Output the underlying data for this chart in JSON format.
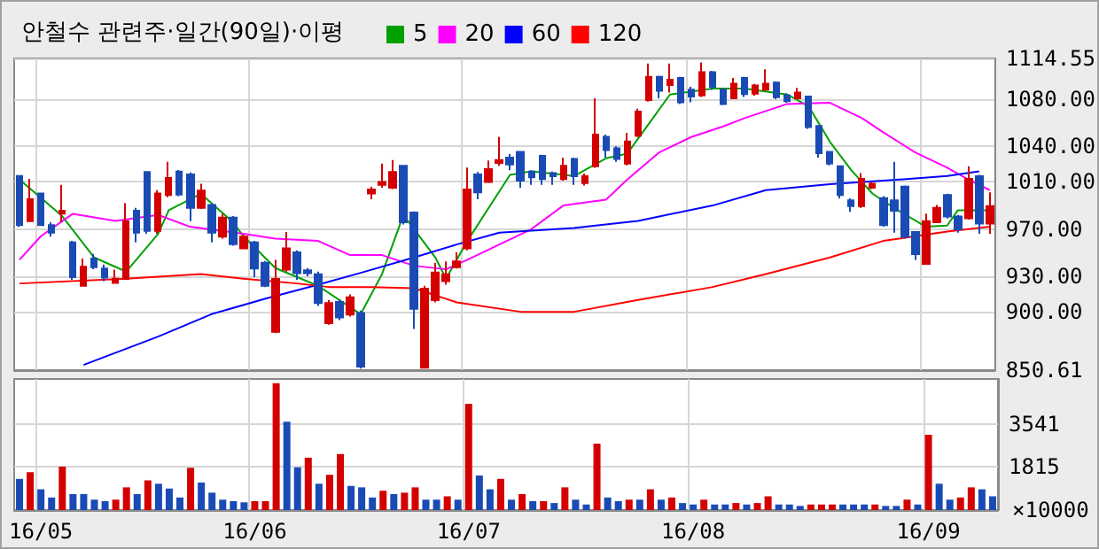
{
  "chart_data": [
    {
      "type": "candlestick",
      "title": "안철수 관련주·일간(90일)·이평",
      "categories": [
        null,
        null,
        null,
        null,
        null,
        null,
        null,
        null,
        null,
        null,
        null,
        null,
        null,
        null,
        null,
        null,
        null,
        null,
        null,
        null,
        null,
        null,
        null,
        null,
        null,
        null,
        null,
        null,
        null,
        null,
        null,
        null,
        null,
        null,
        null,
        null,
        null,
        null,
        null,
        null,
        null,
        null,
        null,
        null,
        null,
        null,
        null,
        null,
        null,
        null,
        null,
        null,
        null,
        null,
        null,
        null,
        null,
        null,
        null,
        null,
        null,
        null,
        null,
        null,
        null,
        null,
        null,
        null,
        null,
        null,
        null,
        null,
        null,
        null,
        null,
        null,
        null,
        null,
        null,
        null,
        null,
        null,
        null,
        null,
        null,
        null,
        null,
        null,
        null,
        null,
        null,
        null
      ],
      "ohlc": [
        [
          1015,
          1015,
          971.9,
          973.4
        ],
        [
          976.8,
          1012.5,
          976,
          995.3
        ],
        [
          1000.2,
          1000.2,
          973,
          973.4
        ],
        [
          973.4,
          975.8,
          963.6,
          967
        ],
        [
          983.1,
          1007.6,
          975.8,
          985.6
        ],
        [
          958.7,
          960,
          927,
          929.4
        ],
        [
          922,
          945,
          922,
          938.2
        ],
        [
          945,
          949,
          936,
          937.7
        ],
        [
          936.7,
          940,
          926,
          928.9
        ],
        [
          924.5,
          935.7,
          924,
          928
        ],
        [
          927.9,
          992,
          927,
          976.8
        ],
        [
          985.6,
          988,
          958.7,
          967
        ],
        [
          1018.3,
          1018.3,
          966,
          968.5
        ],
        [
          968.5,
          1003,
          966,
          1000.2
        ],
        [
          998.8,
          1027.1,
          997,
          1013.4
        ],
        [
          1018.8,
          1020,
          998,
          999.3
        ],
        [
          1016.4,
          1018,
          976.8,
          988
        ],
        [
          988,
          1008.5,
          987,
          1002.7
        ],
        [
          990.5,
          992,
          958.7,
          967
        ],
        [
          963.6,
          983,
          962,
          979.7
        ],
        [
          979.7,
          981,
          956,
          957.2
        ],
        [
          953.8,
          965,
          953,
          963.6
        ],
        [
          958.7,
          960,
          929.4,
          936.7
        ],
        [
          941.6,
          943,
          921,
          922
        ],
        [
          883,
          944,
          882,
          927.9
        ],
        [
          935.7,
          967.5,
          934,
          953.8
        ],
        [
          950.4,
          952,
          927,
          932.8
        ],
        [
          935.2,
          937,
          930,
          932.8
        ],
        [
          931.8,
          934,
          905,
          907.4
        ],
        [
          890.3,
          910,
          889,
          907.4
        ],
        [
          908.4,
          910,
          893,
          895.2
        ],
        [
          897.6,
          914.7,
          896,
          912.3
        ],
        [
          899,
          901,
          852,
          853.6
        ],
        [
          1000.2,
          1006,
          995.3,
          1003.6
        ],
        [
          1007.6,
          1025.6,
          1005,
          1010
        ],
        [
          1005.1,
          1028.6,
          1004,
          1018.3
        ],
        [
          1023.7,
          1024,
          974,
          975.8
        ],
        [
          984,
          985,
          885.4,
          902.5
        ],
        [
          852.6,
          922,
          852,
          919.6
        ],
        [
          909.8,
          941.6,
          908,
          933.3
        ],
        [
          925.9,
          942.6,
          923,
          931.8
        ],
        [
          937.7,
          950.4,
          936.7,
          942.6
        ],
        [
          953.8,
          1022.2,
          952,
          1003.6
        ],
        [
          1016.4,
          1018.3,
          995.3,
          1001.2
        ],
        [
          1010,
          1028.1,
          1009,
          1020.8
        ],
        [
          1026.1,
          1048.1,
          1023.7,
          1028.6
        ],
        [
          1030.5,
          1033.5,
          1019.8,
          1024.7
        ],
        [
          1035.4,
          1036,
          1005.1,
          1011
        ],
        [
          1018.8,
          1019.8,
          1007.6,
          1013.9
        ],
        [
          1032,
          1033,
          1007.6,
          1012.4
        ],
        [
          1017.4,
          1018.8,
          1007.6,
          1014.9
        ],
        [
          1012.4,
          1030.5,
          1011,
          1023.7
        ],
        [
          1029.5,
          1030.5,
          1007.6,
          1014.9
        ],
        [
          1009,
          1017,
          1007,
          1014.9
        ],
        [
          1023.2,
          1080.9,
          1022,
          1050.1
        ],
        [
          1048.1,
          1050.1,
          1030.5,
          1036.9
        ],
        [
          1038.4,
          1040.4,
          1027,
          1029.5
        ],
        [
          1025.6,
          1051.5,
          1024,
          1044.2
        ],
        [
          1049.1,
          1072,
          1048,
          1069.6
        ],
        [
          1079.4,
          1110.2,
          1078,
          1099
        ],
        [
          1099,
          1100,
          1080.9,
          1087.2
        ],
        [
          1092.1,
          1110.2,
          1085.7,
          1096.6
        ],
        [
          1098,
          1099,
          1076,
          1077.4
        ],
        [
          1088.2,
          1090.6,
          1077.4,
          1082.3
        ],
        [
          1083.3,
          1111.2,
          1082,
          1102.9
        ],
        [
          1102.9,
          1104,
          1088,
          1090.6
        ],
        [
          1088.2,
          1089,
          1075,
          1076
        ],
        [
          1080.9,
          1098,
          1080,
          1093.1
        ],
        [
          1098,
          1099,
          1082,
          1084.3
        ],
        [
          1084.8,
          1093,
          1083,
          1091.6
        ],
        [
          1088.2,
          1105.3,
          1087,
          1093.1
        ],
        [
          1094.1,
          1095,
          1080,
          1081.8
        ],
        [
          1083.3,
          1085,
          1077,
          1078.4
        ],
        [
          1080.9,
          1089.7,
          1080,
          1085.7
        ],
        [
          1082.3,
          1083,
          1055,
          1056.4
        ],
        [
          1057.4,
          1058,
          1030.5,
          1034.4
        ],
        [
          1035.4,
          1036,
          1024,
          1025.6
        ],
        [
          1023.2,
          1024,
          996,
          998.8
        ],
        [
          994.4,
          996,
          984.6,
          989.5
        ],
        [
          989.5,
          1017.4,
          988,
          1012.5
        ],
        [
          1005.1,
          1010,
          1004,
          1008.5
        ],
        [
          996.3,
          998,
          972,
          973.4
        ],
        [
          994.4,
          1027.1,
          967,
          985.6
        ],
        [
          1006.1,
          1007,
          962,
          963.6
        ],
        [
          967.5,
          968,
          944,
          948.9
        ],
        [
          940.6,
          983.1,
          940,
          976.8
        ],
        [
          975.8,
          990.5,
          975,
          988
        ],
        [
          998.8,
          1000,
          979,
          980.7
        ],
        [
          980.7,
          982,
          967,
          969.9
        ],
        [
          979.2,
          1023.2,
          978,
          1012.5
        ],
        [
          1014.9,
          1016,
          966,
          974.8
        ],
        [
          974.8,
          1001.2,
          966,
          989.5
        ]
      ],
      "colors": [
        "#1a4bb5",
        "#d40000",
        "#1a4bb5",
        "#1a4bb5",
        "#d40000",
        "#1a4bb5",
        "#d40000",
        "#1a4bb5",
        "#1a4bb5",
        "#d40000",
        "#d40000",
        "#1a4bb5",
        "#1a4bb5",
        "#d40000",
        "#d40000",
        "#1a4bb5",
        "#1a4bb5",
        "#d40000",
        "#1a4bb5",
        "#d40000",
        "#1a4bb5",
        "#d40000",
        "#1a4bb5",
        "#1a4bb5",
        "#d40000",
        "#d40000",
        "#1a4bb5",
        "#1a4bb5",
        "#1a4bb5",
        "#d40000",
        "#1a4bb5",
        "#d40000",
        "#1a4bb5",
        "#d40000",
        "#d40000",
        "#d40000",
        "#1a4bb5",
        "#1a4bb5",
        "#d40000",
        "#d40000",
        "#d40000",
        "#d40000",
        "#d40000",
        "#1a4bb5",
        "#d40000",
        "#d40000",
        "#1a4bb5",
        "#1a4bb5",
        "#1a4bb5",
        "#1a4bb5",
        "#1a4bb5",
        "#d40000",
        "#1a4bb5",
        "#d40000",
        "#d40000",
        "#1a4bb5",
        "#1a4bb5",
        "#d40000",
        "#d40000",
        "#d40000",
        "#1a4bb5",
        "#d40000",
        "#1a4bb5",
        "#1a4bb5",
        "#d40000",
        "#1a4bb5",
        "#1a4bb5",
        "#d40000",
        "#1a4bb5",
        "#d40000",
        "#d40000",
        "#1a4bb5",
        "#1a4bb5",
        "#d40000",
        "#1a4bb5",
        "#1a4bb5",
        "#1a4bb5",
        "#1a4bb5",
        "#1a4bb5",
        "#d40000",
        "#d40000",
        "#1a4bb5",
        "#1a4bb5",
        "#1a4bb5",
        "#1a4bb5",
        "#d40000",
        "#d40000",
        "#1a4bb5",
        "#1a4bb5",
        "#d40000",
        "#1a4bb5",
        "#d40000"
      ],
      "series": [
        {
          "type": "line",
          "name": "5",
          "color": "#00a000",
          "values": [
            1012,
            null,
            null,
            null,
            981,
            null,
            null,
            946,
            null,
            null,
            934,
            null,
            null,
            966,
            986,
            null,
            null,
            1000,
            null,
            null,
            976,
            964,
            null,
            null,
            937,
            null,
            null,
            null,
            922,
            null,
            910,
            null,
            898,
            null,
            932,
            null,
            982,
            null,
            null,
            946,
            928,
            null,
            960,
            null,
            null,
            null,
            1016,
            null,
            1019,
            null,
            null,
            null,
            1015,
            null,
            null,
            1030,
            null,
            1034,
            null,
            1059,
            null,
            1084,
            null,
            null,
            null,
            1089,
            null,
            null,
            1089,
            null,
            null,
            null,
            1084,
            null,
            1074,
            null,
            1044,
            null,
            1020,
            null,
            1000,
            null,
            988,
            null,
            null,
            972,
            null,
            973,
            986,
            null,
            null,
            986
          ]
        },
        {
          "type": "line",
          "name": "20",
          "color": "#ff00ff",
          "values": [
            944,
            null,
            964,
            null,
            null,
            983,
            null,
            null,
            null,
            977,
            null,
            null,
            null,
            982,
            null,
            null,
            972,
            null,
            null,
            null,
            null,
            966,
            null,
            null,
            962,
            null,
            null,
            null,
            960,
            null,
            null,
            948,
            null,
            null,
            948,
            null,
            null,
            939,
            null,
            null,
            936,
            null,
            944,
            null,
            null,
            957,
            null,
            null,
            970,
            null,
            null,
            990,
            null,
            null,
            null,
            995,
            null,
            1012,
            null,
            null,
            1035,
            null,
            null,
            1048,
            null,
            null,
            1057,
            null,
            1064,
            null,
            null,
            null,
            1076,
            null,
            null,
            null,
            1077,
            null,
            null,
            1064,
            null,
            1052,
            null,
            null,
            1035,
            null,
            null,
            1022,
            null,
            1012,
            null,
            1003
          ]
        },
        {
          "type": "line",
          "name": "60",
          "color": "#0000ff",
          "values": [
            null,
            null,
            null,
            null,
            null,
            null,
            855,
            null,
            null,
            null,
            null,
            null,
            null,
            879,
            null,
            null,
            null,
            null,
            898,
            null,
            null,
            null,
            null,
            911,
            null,
            null,
            null,
            null,
            923,
            null,
            null,
            null,
            933,
            null,
            null,
            null,
            null,
            946,
            null,
            null,
            null,
            957,
            null,
            null,
            null,
            967,
            null,
            null,
            null,
            null,
            null,
            null,
            971,
            null,
            null,
            null,
            null,
            null,
            977,
            null,
            null,
            null,
            null,
            null,
            null,
            990,
            null,
            null,
            null,
            null,
            1003,
            null,
            null,
            null,
            null,
            null,
            1008,
            null,
            null,
            null,
            null,
            1011,
            null,
            null,
            null,
            null,
            null,
            1015,
            null,
            null,
            1019,
            null
          ]
        },
        {
          "type": "line",
          "name": "120",
          "color": "#ff0000",
          "values": [
            924,
            null,
            null,
            null,
            null,
            null,
            null,
            null,
            null,
            null,
            928,
            null,
            null,
            null,
            null,
            null,
            null,
            932,
            null,
            null,
            null,
            928,
            null,
            null,
            null,
            null,
            924,
            null,
            null,
            921,
            null,
            null,
            null,
            921,
            null,
            null,
            null,
            920,
            null,
            null,
            null,
            908,
            null,
            null,
            null,
            null,
            null,
            900,
            null,
            null,
            null,
            null,
            900,
            null,
            null,
            null,
            null,
            null,
            910,
            null,
            null,
            null,
            null,
            null,
            null,
            921,
            null,
            null,
            null,
            null,
            932,
            null,
            null,
            null,
            null,
            null,
            946,
            null,
            null,
            null,
            null,
            960,
            null,
            null,
            null,
            null,
            null,
            968,
            null,
            null,
            null,
            972
          ]
        }
      ],
      "ylim": [
        850.61,
        1114.55
      ],
      "yticks": [
        {
          "value": 850.61,
          "label": "850.61"
        },
        {
          "value": 900,
          "label": "900.00"
        },
        {
          "value": 930,
          "label": "930.00"
        },
        {
          "value": 970,
          "label": "970.00"
        },
        {
          "value": 1010,
          "label": "1010.00"
        },
        {
          "value": 1040,
          "label": "1040.00"
        },
        {
          "value": 1080,
          "label": "1080.00"
        },
        {
          "value": 1114.55,
          "label": "1114.55"
        }
      ],
      "grid": true,
      "legend": "top left",
      "tick_labels": "y"
    },
    {
      "type": "bar",
      "ylabel": "×10000",
      "categories": [
        null,
        null,
        "16/05",
        null,
        null,
        null,
        null,
        null,
        null,
        null,
        null,
        null,
        null,
        null,
        null,
        null,
        null,
        null,
        null,
        null,
        null,
        null,
        "16/06",
        null,
        null,
        null,
        null,
        null,
        null,
        null,
        null,
        null,
        null,
        null,
        null,
        null,
        null,
        null,
        null,
        null,
        null,
        null,
        "16/07",
        null,
        null,
        null,
        null,
        null,
        null,
        null,
        null,
        null,
        null,
        null,
        null,
        null,
        null,
        null,
        null,
        null,
        null,
        null,
        null,
        "16/08",
        null,
        null,
        null,
        null,
        null,
        null,
        null,
        null,
        null,
        null,
        null,
        null,
        null,
        null,
        null,
        null,
        null,
        null,
        null,
        null,
        null,
        "16/09",
        null,
        null,
        null,
        null,
        null,
        null
      ],
      "values": [
        1290,
        1570,
        860,
        520,
        1800,
        660,
        660,
        430,
        370,
        430,
        940,
        660,
        1230,
        1090,
        890,
        520,
        1750,
        1140,
        720,
        430,
        370,
        320,
        370,
        370,
        5260,
        3660,
        1770,
        2170,
        1090,
        1460,
        2320,
        1000,
        940,
        520,
        800,
        660,
        720,
        940,
        430,
        430,
        570,
        430,
        4400,
        1430,
        860,
        1290,
        430,
        660,
        370,
        370,
        290,
        940,
        430,
        230,
        2750,
        520,
        370,
        430,
        430,
        860,
        430,
        520,
        290,
        230,
        430,
        230,
        230,
        290,
        230,
        290,
        570,
        230,
        230,
        170,
        230,
        230,
        230,
        230,
        230,
        230,
        230,
        170,
        170,
        430,
        230,
        3120,
        1090,
        430,
        520,
        940,
        860,
        570
      ],
      "colors": [
        "#1a4bb5",
        "#d40000",
        "#1a4bb5",
        "#1a4bb5",
        "#d40000",
        "#1a4bb5",
        "#1a4bb5",
        "#1a4bb5",
        "#1a4bb5",
        "#d40000",
        "#d40000",
        "#1a4bb5",
        "#d40000",
        "#1a4bb5",
        "#1a4bb5",
        "#1a4bb5",
        "#d40000",
        "#1a4bb5",
        "#1a4bb5",
        "#1a4bb5",
        "#1a4bb5",
        "#1a4bb5",
        "#d40000",
        "#d40000",
        "#d40000",
        "#1a4bb5",
        "#1a4bb5",
        "#d40000",
        "#1a4bb5",
        "#d40000",
        "#d40000",
        "#1a4bb5",
        "#1a4bb5",
        "#1a4bb5",
        "#d40000",
        "#1a4bb5",
        "#d40000",
        "#d40000",
        "#1a4bb5",
        "#1a4bb5",
        "#d40000",
        "#1a4bb5",
        "#d40000",
        "#1a4bb5",
        "#1a4bb5",
        "#d40000",
        "#1a4bb5",
        "#d40000",
        "#1a4bb5",
        "#d40000",
        "#1a4bb5",
        "#d40000",
        "#1a4bb5",
        "#1a4bb5",
        "#d40000",
        "#1a4bb5",
        "#1a4bb5",
        "#d40000",
        "#1a4bb5",
        "#d40000",
        "#1a4bb5",
        "#d40000",
        "#1a4bb5",
        "#1a4bb5",
        "#d40000",
        "#1a4bb5",
        "#1a4bb5",
        "#d40000",
        "#1a4bb5",
        "#d40000",
        "#d40000",
        "#1a4bb5",
        "#1a4bb5",
        "#1a4bb5",
        "#d40000",
        "#d40000",
        "#d40000",
        "#1a4bb5",
        "#1a4bb5",
        "#1a4bb5",
        "#d40000",
        "#1a4bb5",
        "#1a4bb5",
        "#d40000",
        "#1a4bb5",
        "#d40000",
        "#1a4bb5",
        "#1a4bb5",
        "#d40000",
        "#d40000",
        "#1a4bb5",
        "#1a4bb5"
      ],
      "ylim": [
        0,
        5430
      ],
      "yticks": [
        1815,
        3541
      ],
      "grid": true
    }
  ]
}
